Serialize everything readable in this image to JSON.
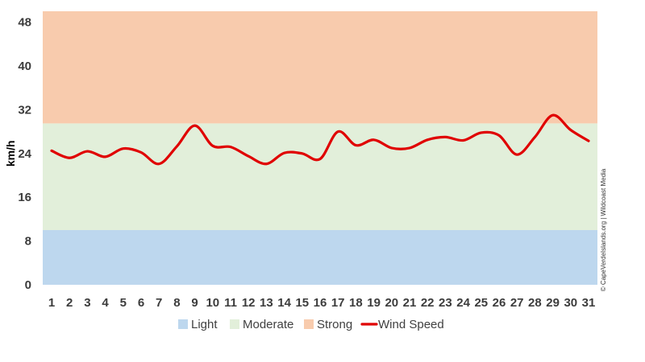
{
  "chart_data": {
    "type": "line",
    "title": "",
    "xlabel": "",
    "ylabel": "km/h",
    "x": [
      1,
      2,
      3,
      4,
      5,
      6,
      7,
      8,
      9,
      10,
      11,
      12,
      13,
      14,
      15,
      16,
      17,
      18,
      19,
      20,
      21,
      22,
      23,
      24,
      25,
      26,
      27,
      28,
      29,
      30,
      31
    ],
    "xlim": [
      1,
      31
    ],
    "ylim": [
      0,
      50
    ],
    "yticks": [
      0,
      8,
      16,
      24,
      32,
      40,
      48
    ],
    "grid": false,
    "legend_position": "bottom",
    "bands": [
      {
        "name": "Light",
        "from": 0,
        "to": 10,
        "color": "#bdd7ee"
      },
      {
        "name": "Moderate",
        "from": 10,
        "to": 29.5,
        "color": "#e2efda"
      },
      {
        "name": "Strong",
        "from": 29.5,
        "to": 50,
        "color": "#f8cbad"
      }
    ],
    "series": [
      {
        "name": "Wind Speed",
        "color": "#e00000",
        "values": [
          24.5,
          23.2,
          24.4,
          23.4,
          24.9,
          24.2,
          22.1,
          25.3,
          29.1,
          25.4,
          25.2,
          23.5,
          22.1,
          24.1,
          24.0,
          23.0,
          28.0,
          25.5,
          26.5,
          25.0,
          25.0,
          26.5,
          27.0,
          26.4,
          27.8,
          27.3,
          23.8,
          27.0,
          31.0,
          28.3,
          26.3
        ]
      }
    ],
    "watermark": "© CapeVerdeIslands.org | Wildcoast Media"
  }
}
